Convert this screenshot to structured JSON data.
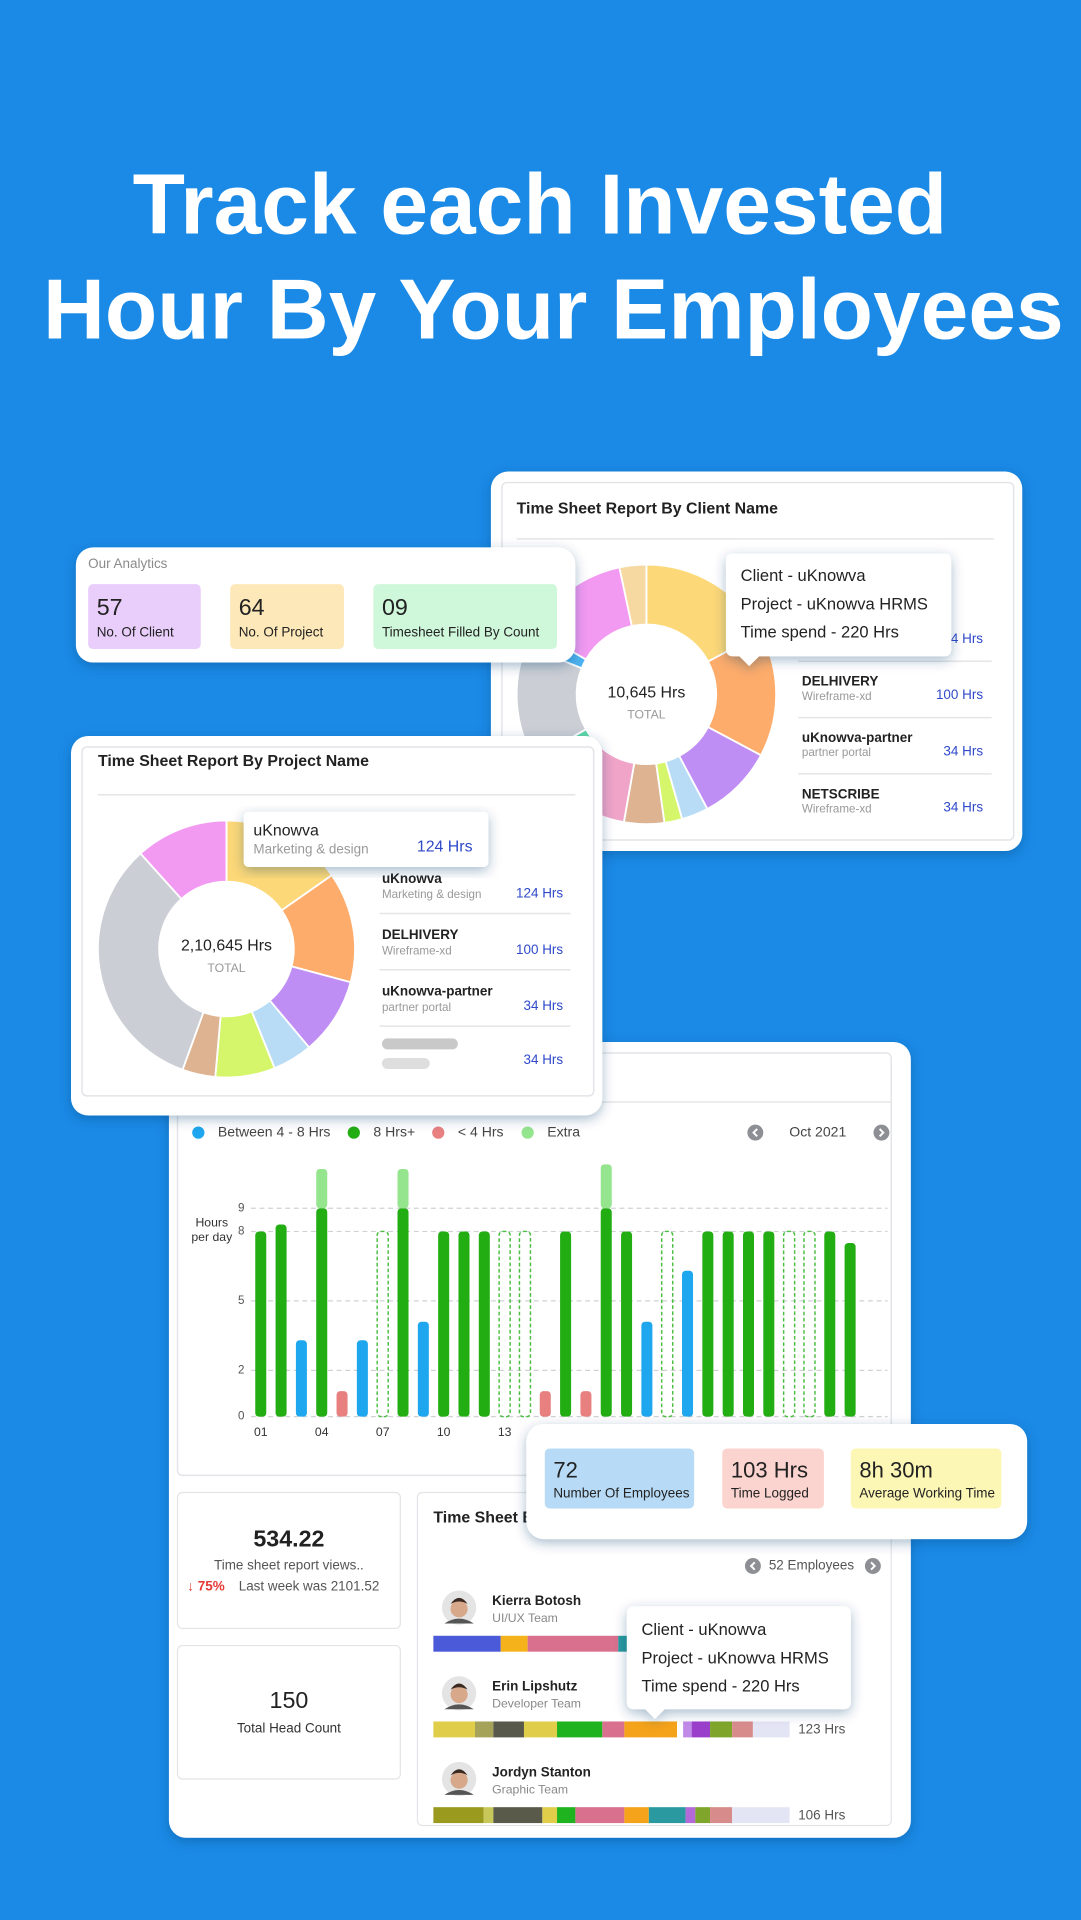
{
  "header": {
    "title_line1": "Track each Invested",
    "title_line2": "Hour By Your Employees"
  },
  "analytics": {
    "title": "Our Analytics",
    "stats": [
      {
        "value": "57",
        "label": "No. Of Client"
      },
      {
        "value": "64",
        "label": "No. Of Project"
      },
      {
        "value": "09",
        "label": "Timesheet Filled By Count"
      }
    ]
  },
  "client_report": {
    "title": "Time Sheet Report By Client Name",
    "total": "10,645 Hrs",
    "total_label": "TOTAL",
    "tooltip": [
      "Client - uKnowva",
      "Project - uKnowva HRMS",
      "Time spend - 220 Hrs"
    ],
    "partial_hours": "4 Hrs",
    "rows": [
      {
        "name": "DELHIVERY",
        "sub": "Wireframe-xd",
        "hours": "100 Hrs"
      },
      {
        "name": "uKnowva-partner",
        "sub": "partner portal",
        "hours": "34 Hrs"
      },
      {
        "name": "NETSCRIBE",
        "sub": "Wireframe-xd",
        "hours": "34 Hrs"
      }
    ]
  },
  "project_report": {
    "title": "Time Sheet Report By Project Name",
    "total": "2,10,645 Hrs",
    "total_label": "TOTAL",
    "tooltip": {
      "name": "uKnowva",
      "sub": "Marketing & design",
      "hours": "124 Hrs"
    },
    "rows": [
      {
        "name": "uKnowva",
        "sub": "Marketing & design",
        "hours": "124 Hrs"
      },
      {
        "name": "DELHIVERY",
        "sub": "Wireframe-xd",
        "hours": "100 Hrs"
      },
      {
        "name": "uKnowva-partner",
        "sub": "partner portal",
        "hours": "34 Hrs"
      }
    ],
    "last_hours": "34 Hrs"
  },
  "attendance": {
    "month": "Oct 2021",
    "axis_title": [
      "Hours",
      "per day"
    ],
    "chart": {
      "type": "bar",
      "categories": [
        "01",
        null,
        null,
        "04",
        null,
        null,
        "07",
        null,
        null,
        "10",
        null,
        null,
        "13",
        null,
        null,
        null,
        null,
        null,
        null,
        null,
        null,
        null,
        null,
        null,
        null,
        null,
        null,
        null,
        null,
        null
      ],
      "series": [
        {
          "name": "Between 4 - 8 Hrs",
          "color": "#1ea6ee",
          "values": [
            null,
            null,
            3.3,
            null,
            null,
            3.3,
            null,
            null,
            4.1,
            null,
            null,
            null,
            null,
            null,
            null,
            null,
            null,
            null,
            null,
            4.1,
            null,
            6.3,
            null,
            null,
            null,
            null,
            null,
            null,
            null,
            null
          ]
        },
        {
          "name": "8 Hrs+",
          "color": "#22ad12",
          "values": [
            8,
            8.3,
            null,
            9,
            null,
            null,
            null,
            9,
            null,
            8,
            8,
            8,
            null,
            null,
            null,
            8,
            null,
            9,
            8,
            null,
            null,
            null,
            8,
            8,
            8,
            8,
            null,
            null,
            8,
            7.5
          ]
        },
        {
          "name": "< 4 Hrs",
          "color": "#e88080",
          "values": [
            null,
            null,
            null,
            null,
            1.1,
            null,
            null,
            null,
            null,
            null,
            null,
            null,
            null,
            null,
            1.1,
            null,
            1.1,
            null,
            null,
            null,
            null,
            null,
            null,
            null,
            null,
            null,
            null,
            null,
            null,
            null
          ]
        },
        {
          "name": "Extra",
          "color": "#95e48e",
          "stack_on": 1,
          "values": [
            null,
            null,
            null,
            1.7,
            null,
            null,
            null,
            1.7,
            null,
            null,
            null,
            null,
            null,
            null,
            null,
            null,
            null,
            1.9,
            null,
            null,
            null,
            null,
            null,
            null,
            null,
            null,
            null,
            null,
            null,
            null
          ]
        }
      ],
      "dashed": {
        "color": "#4cbf42",
        "values": [
          null,
          null,
          null,
          null,
          null,
          null,
          8,
          null,
          null,
          null,
          null,
          null,
          8,
          8,
          null,
          null,
          null,
          null,
          null,
          null,
          8,
          null,
          null,
          null,
          null,
          null,
          8,
          8,
          null,
          null
        ]
      },
      "ylim": [
        0,
        11
      ],
      "yticks": [
        0,
        2,
        5,
        8,
        9
      ],
      "grid": true
    }
  },
  "summary": {
    "views_value": "534.22",
    "views_label": "Time sheet report views..",
    "change": "↓ 75%",
    "last_week": "Last week was 2101.52",
    "head_count": "150",
    "head_count_label": "Total Head Count"
  },
  "stats": [
    {
      "value": "72",
      "label": "Number Of Employees"
    },
    {
      "value": "103 Hrs",
      "label": "Time Logged"
    },
    {
      "value": "8h 30m",
      "label": "Average Working Time"
    }
  ],
  "employees": {
    "title": "Time Sheet B",
    "count": "52 Employees",
    "tooltip": [
      "Client - uKnowva",
      "Project - uKnowva HRMS",
      "Time spend - 220 Hrs"
    ],
    "list": [
      {
        "name": "Kierra Botosh",
        "team": "UI/UX Team"
      },
      {
        "name": "Erin Lipshutz",
        "team": "Developer Team",
        "hours": "123 Hrs"
      },
      {
        "name": "Jordyn Stanton",
        "team": "Graphic Team",
        "hours": "106 Hrs"
      }
    ]
  }
}
